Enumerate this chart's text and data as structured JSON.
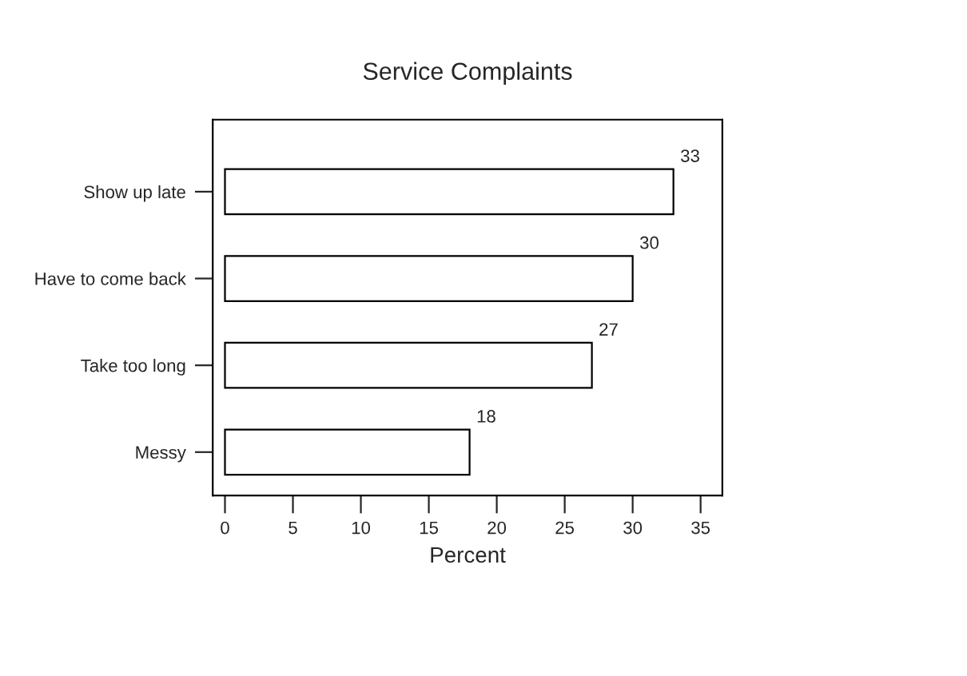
{
  "chart_data": {
    "type": "bar",
    "orientation": "horizontal",
    "title": "Service Complaints",
    "xlabel": "Percent",
    "categories": [
      "Show up late",
      "Have to come back",
      "Take too long",
      "Messy"
    ],
    "values": [
      33,
      30,
      27,
      18
    ],
    "color": "#ffffff",
    "xlim": [
      -0.9,
      36.6
    ],
    "xticks": [
      0,
      5,
      10,
      15,
      20,
      25,
      30,
      35
    ],
    "grid": false,
    "data_labels": true
  }
}
